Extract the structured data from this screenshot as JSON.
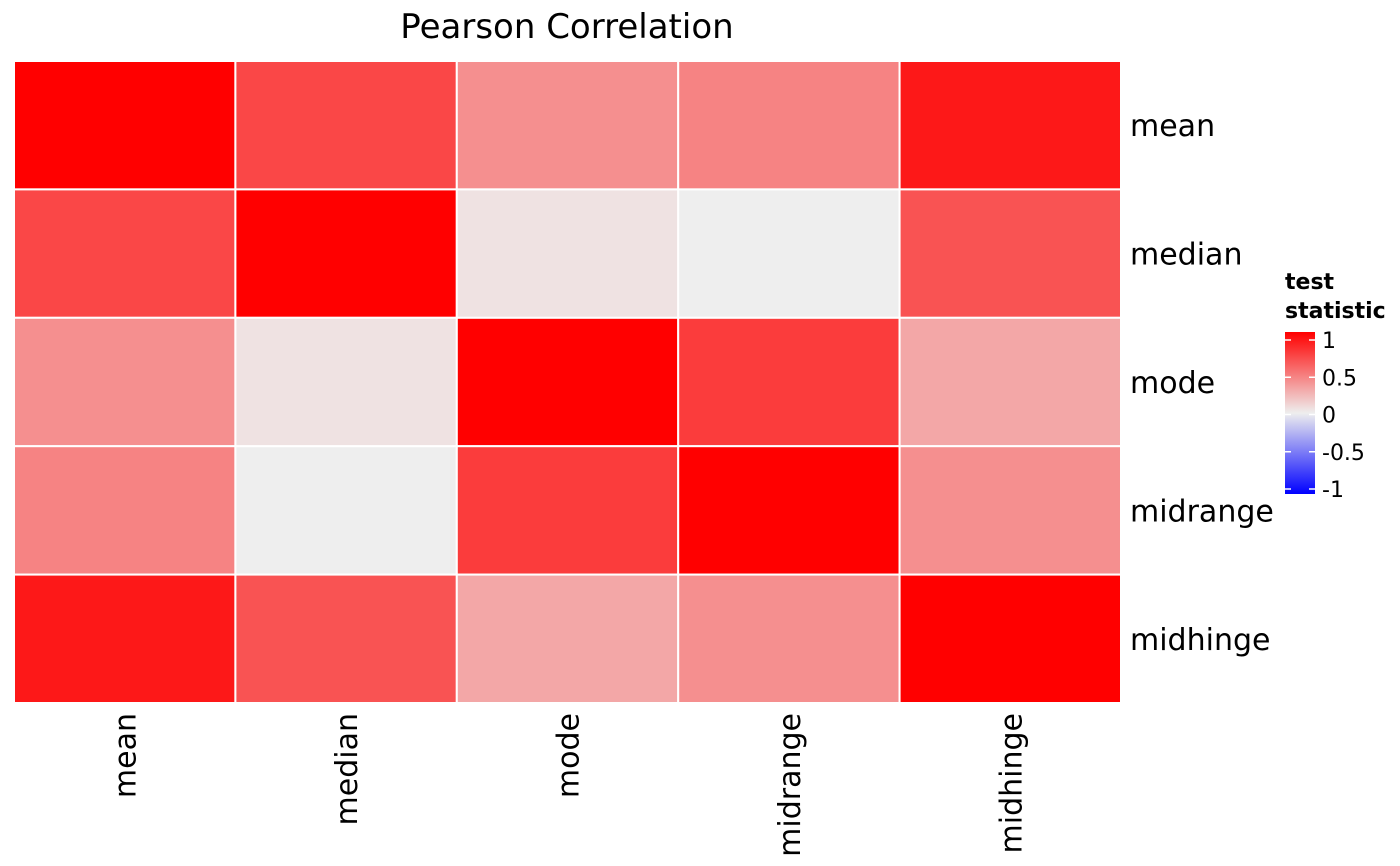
{
  "chart_data": {
    "type": "heatmap",
    "title": "Pearson Correlation",
    "rows": [
      "mean",
      "median",
      "mode",
      "midrange",
      "midhinge"
    ],
    "columns": [
      "mean",
      "median",
      "mode",
      "midrange",
      "midhinge"
    ],
    "values": [
      [
        1.0,
        0.7,
        0.4,
        0.45,
        0.9
      ],
      [
        0.7,
        1.0,
        0.05,
        0.0,
        0.65
      ],
      [
        0.4,
        0.05,
        1.0,
        0.75,
        0.3
      ],
      [
        0.45,
        0.0,
        0.75,
        1.0,
        0.4
      ],
      [
        0.9,
        0.65,
        0.3,
        0.4,
        1.0
      ]
    ],
    "legend": {
      "title_lines": [
        "test",
        "statistic"
      ],
      "ticks": [
        1,
        0.5,
        0,
        -0.5,
        -1
      ],
      "tick_labels": [
        "1",
        "0.5",
        "0",
        "-0.5",
        "-1"
      ],
      "range": [
        -1,
        1
      ],
      "placement": "right"
    },
    "colors": {
      "high": "#ff0000",
      "mid": "#eeeeee",
      "low": "#0000ff",
      "cell_border": "#ffffff"
    }
  }
}
